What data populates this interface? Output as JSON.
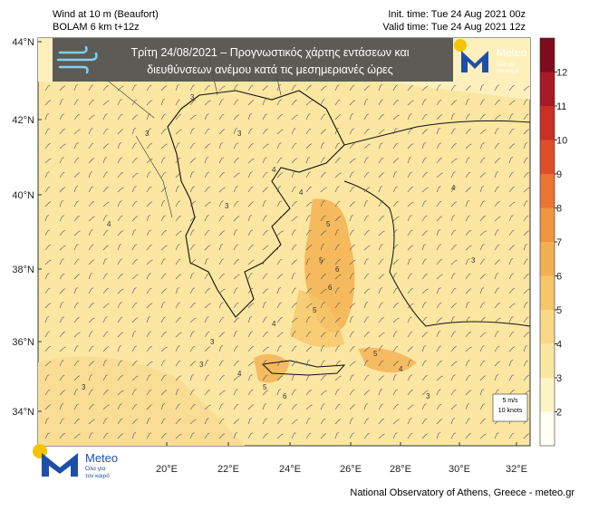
{
  "header": {
    "left": [
      "Wind at 10 m (Beaufort)",
      "BOLAM 6 km t+12z"
    ],
    "right": [
      "Init. time: Tue 24 Aug 2021 00z",
      "Valid time: Tue 24 Aug 2021 12z"
    ]
  },
  "banner": {
    "lines": [
      "Τρίτη 24/08/2021 – Προγνωστικός  χάρτης εντάσεων και",
      "διευθύνσεων ανέμου κατά τις μεσημεριανές ώρες"
    ],
    "logo": "Meteo",
    "tagline": [
      "Όλα για",
      "τον καιρό"
    ]
  },
  "map": {
    "lat_labels": [
      "44°N",
      "42°N",
      "40°N",
      "38°N",
      "36°N",
      "34°N"
    ],
    "lon_labels": [
      "20°E",
      "22°E",
      "24°E",
      "26°E",
      "28°E",
      "30°E",
      "32°E"
    ],
    "contour_labels": [
      "3",
      "3",
      "4",
      "3",
      "3",
      "4",
      "4",
      "5",
      "5",
      "6",
      "6",
      "5",
      "4",
      "3",
      "3",
      "4",
      "5",
      "6",
      "5",
      "4",
      "3",
      "4",
      "3",
      "3"
    ]
  },
  "colorbar": {
    "ticks": [
      "2",
      "3",
      "4",
      "5",
      "6",
      "7",
      "8",
      "9",
      "10",
      "11",
      "12"
    ],
    "colors": [
      "#fffff4",
      "#fdf3c4",
      "#fbe6a2",
      "#f9d988",
      "#f6c76a",
      "#f3b052",
      "#f09640",
      "#ea7432",
      "#de4e2a",
      "#c93026",
      "#a81a26",
      "#7e0c1c"
    ]
  },
  "scale_box": [
    "5 m/s",
    "10 knots"
  ],
  "footer": "National Observatory of Athens, Greece - meteo.gr",
  "bottom_logo": {
    "name": "Meteo",
    "tagline": [
      "Όλα για",
      "τον καιρό"
    ]
  }
}
